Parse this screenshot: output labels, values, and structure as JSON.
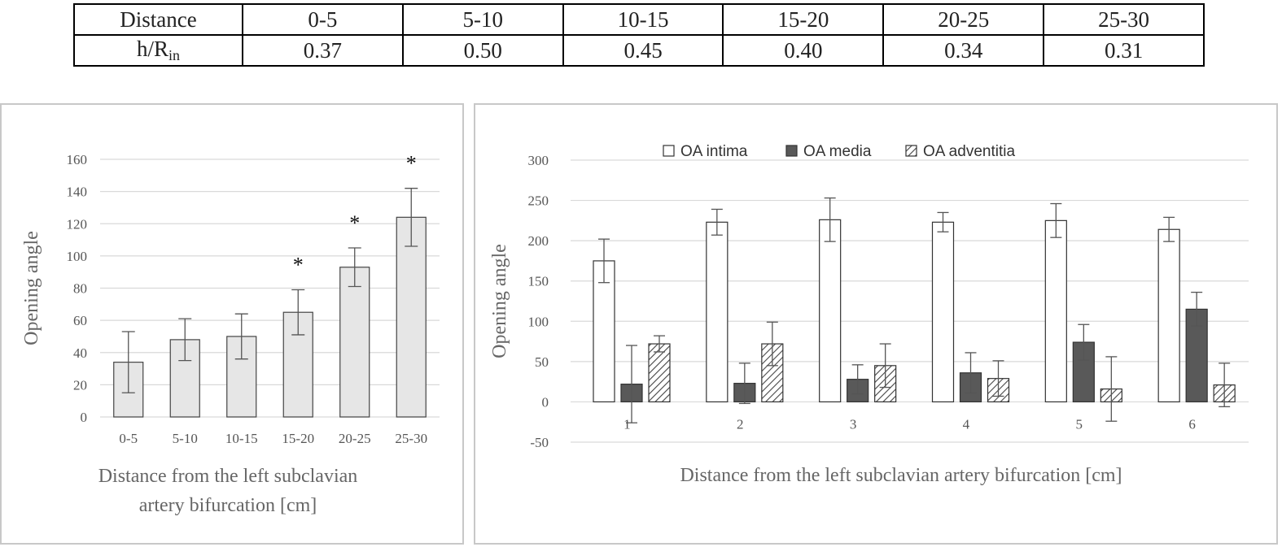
{
  "table": {
    "header_label": "Distance",
    "row_label_main": "h/R",
    "row_label_sub": "in",
    "columns": [
      "0-5",
      "5-10",
      "10-15",
      "15-20",
      "20-25",
      "25-30"
    ],
    "values": [
      "0.37",
      "0.50",
      "0.45",
      "0.40",
      "0.34",
      "0.31"
    ]
  },
  "chart_data": [
    {
      "type": "bar",
      "categories": [
        "0-5",
        "5-10",
        "10-15",
        "15-20",
        "20-25",
        "25-30"
      ],
      "values": [
        34,
        48,
        50,
        65,
        93,
        124
      ],
      "errors": [
        19,
        13,
        14,
        14,
        12,
        18
      ],
      "significance": [
        "",
        "",
        "",
        "*",
        "*",
        "*"
      ],
      "ylim": [
        0,
        160
      ],
      "yticks": [
        0,
        20,
        40,
        60,
        80,
        100,
        120,
        140,
        160
      ],
      "ylabel": "Opening angle",
      "xlabel_line1": "Distance from  the left subclavian",
      "xlabel_line2": "artery bifurcation [cm]",
      "bar_color": "#e6e6e6",
      "grid": true
    },
    {
      "type": "bar",
      "categories": [
        "1",
        "2",
        "3",
        "4",
        "5",
        "6"
      ],
      "series": [
        {
          "name": "OA intima",
          "values": [
            175,
            223,
            226,
            223,
            225,
            214
          ],
          "errors": [
            27,
            16,
            27,
            12,
            21,
            15
          ],
          "fill": "#ffffff"
        },
        {
          "name": "OA media",
          "values": [
            22,
            23,
            28,
            36,
            74,
            115
          ],
          "errors": [
            48,
            25,
            18,
            25,
            22,
            21
          ],
          "fill": "#595959"
        },
        {
          "name": "OA adventitia",
          "values": [
            72,
            72,
            45,
            29,
            16,
            21
          ],
          "errors": [
            10,
            27,
            27,
            22,
            40,
            27
          ],
          "fill": "hatch"
        }
      ],
      "ylim": [
        -50,
        300
      ],
      "yticks": [
        -50,
        0,
        50,
        100,
        150,
        200,
        250,
        300
      ],
      "ylabel": "Opening angle",
      "xlabel": "Distance from  the left subclavian artery bifurcation [cm]",
      "legend_position": "top",
      "grid": true
    }
  ]
}
